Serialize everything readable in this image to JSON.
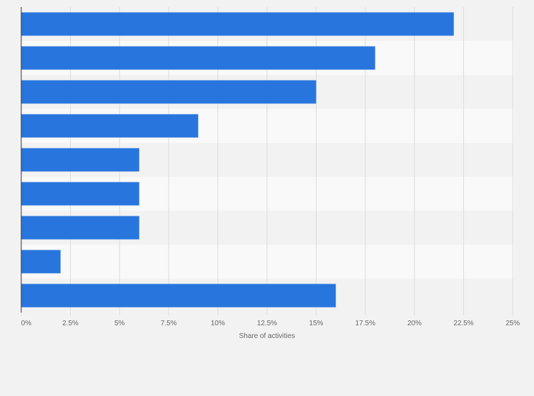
{
  "chart_data": {
    "type": "bar",
    "orientation": "horizontal",
    "categories": [
      "",
      "",
      "",
      "",
      "",
      "",
      "",
      "",
      ""
    ],
    "values": [
      22,
      18,
      15,
      9,
      6,
      6,
      6,
      2,
      16
    ],
    "xlabel": "Share of activities",
    "ylabel": "",
    "xlim": [
      0,
      25
    ],
    "ticks": [
      0,
      2.5,
      5,
      7.5,
      10,
      12.5,
      15,
      17.5,
      20,
      22.5,
      25
    ],
    "tick_labels": [
      "0%",
      "2.5%",
      "5%",
      "7.5%",
      "10%",
      "12.5%",
      "15%",
      "17.5%",
      "20%",
      "22.5%",
      "25%"
    ],
    "grid": true,
    "colors": {
      "bar": "#2876dd",
      "band_light": "#f9f9f9",
      "band_dark": "#f2f2f2",
      "grid": "#dcdcdc",
      "axis": "#333333",
      "text": "#666666"
    }
  }
}
